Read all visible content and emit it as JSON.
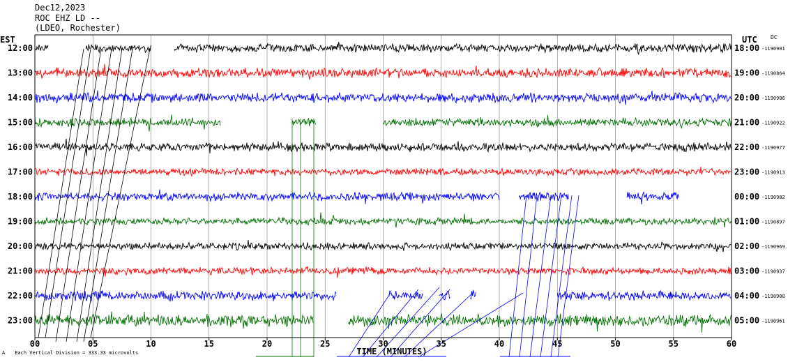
{
  "header": {
    "date": "Dec12,2023",
    "station": "ROC EHZ LD --",
    "network": "(LDEO, Rochester)"
  },
  "chart_data": {
    "type": "line",
    "title": "",
    "left_axis_label": "EST",
    "right_axis_label": "UTC",
    "right_column_label": "DC",
    "xlabel": "TIME (MINUTES)",
    "xlim": [
      0,
      60
    ],
    "x_ticks": [
      "00",
      "05",
      "10",
      "15",
      "20",
      "25",
      "30",
      "35",
      "40",
      "45",
      "50",
      "55",
      "60"
    ],
    "grid": true,
    "footer_note": "Each Vertical Division = 333.33 microvolts",
    "trace_colors": [
      "#000000",
      "#ff0000",
      "#0000ff",
      "#007000"
    ],
    "rows": [
      {
        "est": "12:00",
        "utc": "18:00",
        "dc": "-1190901",
        "color": "#000000",
        "amp": 7,
        "segments": [
          [
            0,
            1.2
          ],
          [
            4.4,
            10
          ],
          [
            12,
            60
          ]
        ]
      },
      {
        "est": "13:00",
        "utc": "19:00",
        "dc": "-1190864",
        "color": "#ff0000",
        "amp": 8,
        "segments": [
          [
            0,
            60
          ]
        ]
      },
      {
        "est": "14:00",
        "utc": "20:00",
        "dc": "-1190906",
        "color": "#0000ff",
        "amp": 8,
        "segments": [
          [
            0,
            60
          ]
        ]
      },
      {
        "est": "15:00",
        "utc": "21:00",
        "dc": "-1190922",
        "color": "#007000",
        "amp": 7,
        "segments": [
          [
            0,
            16
          ],
          [
            22.2,
            24.2
          ],
          [
            30,
            60
          ]
        ]
      },
      {
        "est": "16:00",
        "utc": "22:00",
        "dc": "-1190977",
        "color": "#000000",
        "amp": 7,
        "segments": [
          [
            0,
            60
          ]
        ]
      },
      {
        "est": "17:00",
        "utc": "23:00",
        "dc": "-1190913",
        "color": "#ff0000",
        "amp": 6,
        "segments": [
          [
            0,
            60
          ]
        ]
      },
      {
        "est": "18:00",
        "utc": "00:00",
        "dc": "-1190982",
        "color": "#0000ff",
        "amp": 7,
        "segments": [
          [
            0,
            40
          ],
          [
            41.7,
            46
          ],
          [
            51,
            55.5
          ]
        ]
      },
      {
        "est": "19:00",
        "utc": "01:00",
        "dc": "-1190897",
        "color": "#007000",
        "amp": 6,
        "segments": [
          [
            0,
            60
          ]
        ]
      },
      {
        "est": "20:00",
        "utc": "02:00",
        "dc": "-1190969",
        "color": "#000000",
        "amp": 6,
        "segments": [
          [
            0,
            60
          ]
        ]
      },
      {
        "est": "21:00",
        "utc": "03:00",
        "dc": "-1190937",
        "color": "#ff0000",
        "amp": 6,
        "segments": [
          [
            0,
            60
          ]
        ]
      },
      {
        "est": "22:00",
        "utc": "04:00",
        "dc": "-1190908",
        "color": "#0000ff",
        "amp": 8,
        "segments": [
          [
            0,
            26
          ],
          [
            30.5,
            33.5
          ],
          [
            34.8,
            35.8
          ],
          [
            37.5,
            38
          ],
          [
            45,
            60
          ]
        ]
      },
      {
        "est": "23:00",
        "utc": "05:00",
        "dc": "-1190961",
        "color": "#007000",
        "amp": 10,
        "segments": [
          [
            0,
            24
          ],
          [
            27,
            60
          ]
        ]
      }
    ]
  }
}
